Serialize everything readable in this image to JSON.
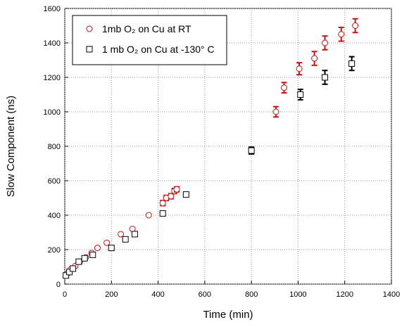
{
  "chart_data": {
    "type": "scatter",
    "x_label": "Time (min)",
    "y_label": "Slow Component (ns)",
    "xlim": [
      0,
      1400
    ],
    "xticks": [
      0,
      200,
      400,
      600,
      800,
      1000,
      1200,
      1400
    ],
    "ylim": [
      0,
      1600
    ],
    "yticks": [
      0,
      200,
      400,
      600,
      800,
      1000,
      1200,
      1400,
      1600
    ],
    "grid": true,
    "legend": "upper left",
    "series": [
      {
        "name": "1mb O₂ on Cu at RT",
        "color": "#cc1111",
        "marker": "circle",
        "x": [
          10,
          25,
          45,
          65,
          90,
          115,
          140,
          180,
          240,
          290,
          360,
          420,
          435,
          455,
          470,
          480,
          905,
          940,
          1005,
          1070,
          1115,
          1185,
          1245
        ],
        "values": [
          60,
          85,
          105,
          130,
          155,
          180,
          210,
          240,
          290,
          320,
          400,
          470,
          500,
          510,
          540,
          550,
          1000,
          1140,
          1250,
          1310,
          1400,
          1450,
          1500
        ],
        "errors": [
          5,
          5,
          5,
          5,
          5,
          5,
          5,
          5,
          5,
          5,
          5,
          15,
          15,
          15,
          15,
          15,
          30,
          30,
          35,
          40,
          40,
          40,
          40
        ]
      },
      {
        "name": "1 mb O₂ on Cu at -130° C",
        "color": "#000000",
        "marker": "square",
        "x": [
          5,
          20,
          35,
          60,
          85,
          120,
          200,
          260,
          300,
          420,
          520,
          800,
          1010,
          1115,
          1230
        ],
        "values": [
          50,
          70,
          90,
          130,
          150,
          170,
          210,
          260,
          290,
          410,
          520,
          775,
          1100,
          1200,
          1280
        ],
        "errors": [
          5,
          5,
          5,
          5,
          5,
          5,
          5,
          5,
          5,
          5,
          10,
          20,
          30,
          40,
          40
        ]
      }
    ]
  }
}
